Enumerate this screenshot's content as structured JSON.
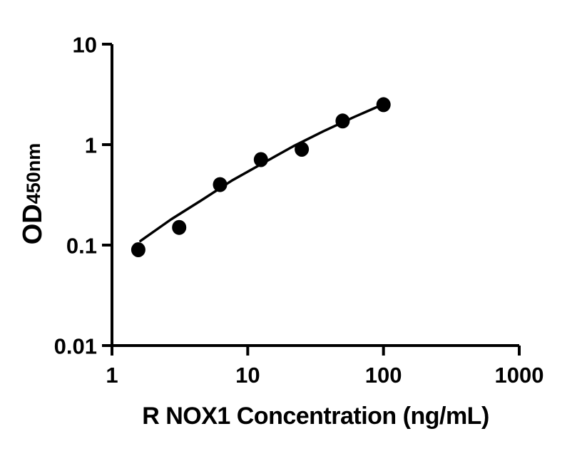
{
  "figure": {
    "background": "#ffffff",
    "ink_color": "#000000"
  },
  "chart_data": {
    "type": "scatter",
    "title": "",
    "xlabel": "R NOX1 Concentration (ng/mL)",
    "ylabel": "OD450nm",
    "ylabel_main": "OD",
    "ylabel_sub": "450nm",
    "x_scale": "log",
    "y_scale": "log",
    "xlim": [
      1,
      1000
    ],
    "ylim": [
      0.01,
      10
    ],
    "grid": false,
    "legend": false,
    "x_ticks": {
      "values": [
        1,
        10,
        100,
        1000
      ],
      "labels": [
        "1",
        "10",
        "100",
        "1000"
      ]
    },
    "y_ticks": {
      "values": [
        10,
        1,
        0.1,
        0.01
      ],
      "labels": [
        "10",
        "1",
        "0.1",
        "0.01"
      ]
    },
    "series": [
      {
        "name": "standard-points",
        "marker": "filled-circle",
        "color": "#000000",
        "x": [
          1.5625,
          3.125,
          6.25,
          12.5,
          25,
          50,
          100
        ],
        "y": [
          0.09,
          0.15,
          0.4,
          0.71,
          0.9,
          1.72,
          2.5
        ]
      }
    ],
    "fit_curve": {
      "name": "fitted-standard-curve",
      "color": "#000000",
      "x": [
        1.62,
        2.72,
        4.57,
        7.66,
        12.84,
        21.54,
        36.13,
        60.6,
        101
      ],
      "y": [
        0.11,
        0.18,
        0.28,
        0.44,
        0.65,
        0.96,
        1.36,
        1.88,
        2.54
      ]
    }
  }
}
